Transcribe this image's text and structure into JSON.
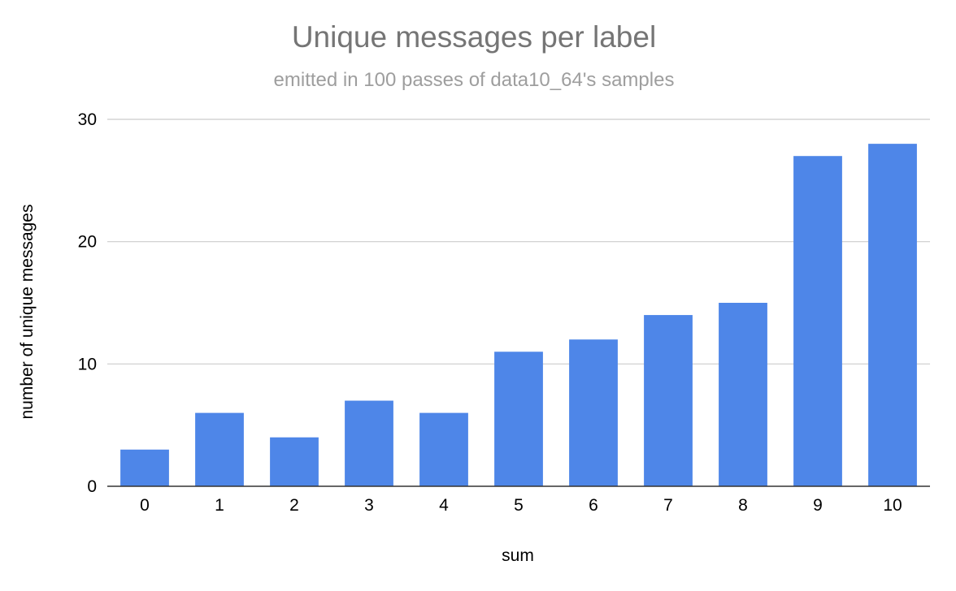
{
  "chart_data": {
    "type": "bar",
    "title": "Unique messages per label",
    "subtitle": "emitted in 100 passes of data10_64's samples",
    "xlabel": "sum",
    "ylabel": "number of unique messages",
    "categories": [
      "0",
      "1",
      "2",
      "3",
      "4",
      "5",
      "6",
      "7",
      "8",
      "9",
      "10"
    ],
    "values": [
      3,
      6,
      4,
      7,
      6,
      11,
      12,
      14,
      15,
      27,
      28
    ],
    "ylim": [
      0,
      30
    ],
    "yticks": [
      "0",
      "10",
      "20",
      "30"
    ],
    "grid": true,
    "legend": "none",
    "bar_color": "#4e86e8",
    "gridline_color": "#cccccc",
    "baseline_color": "#333333"
  }
}
